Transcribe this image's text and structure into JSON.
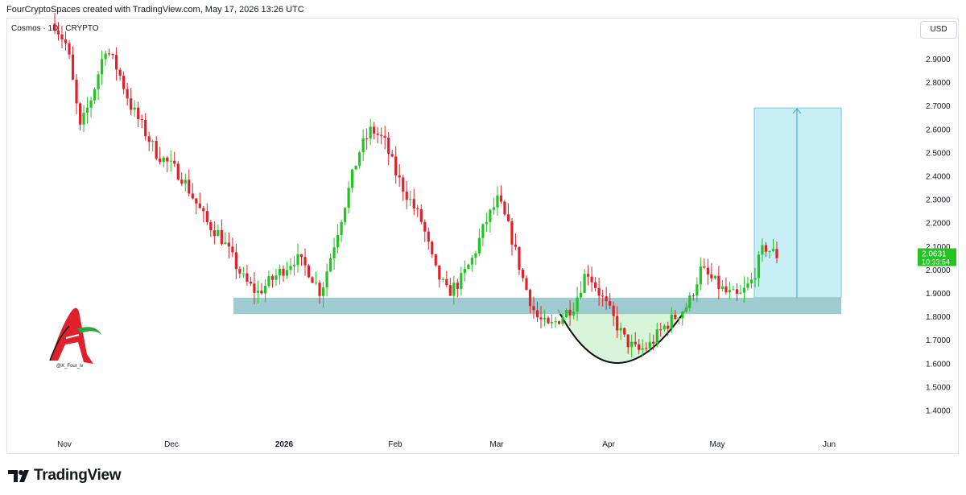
{
  "header": {
    "credit": "FourCryptoSpaces created with TradingView.com, May 17, 2026 13:26 UTC"
  },
  "symbol": {
    "label": "Cosmos · 1D · CRYPTO"
  },
  "currency_button": "USD",
  "watermark": {
    "handle": "@X_Four_iv"
  },
  "footer": {
    "brand": "TradingView"
  },
  "colors": {
    "up": "#22c322",
    "down": "#e0202a",
    "zone": "#8fc3c9",
    "target_box": "#c8eef6",
    "cup_fill": "#d9f5d9"
  },
  "chart_data": {
    "type": "candlestick",
    "symbol": "Cosmos",
    "interval": "1D",
    "currency": "USD",
    "ylim": [
      1.3,
      3.05
    ],
    "y_ticks": [
      "2.9000",
      "2.8000",
      "2.7000",
      "2.6000",
      "2.5000",
      "2.4000",
      "2.3000",
      "2.2000",
      "2.1000",
      "2.0000",
      "1.9000",
      "1.8000",
      "1.7000",
      "1.6000",
      "1.5000",
      "1.4000"
    ],
    "x_ticks": [
      "Nov",
      "Dec",
      "2026",
      "Feb",
      "Mar",
      "Apr",
      "May",
      "Jun"
    ],
    "last_price": "2.0631",
    "countdown": "10:33:54",
    "annotations": {
      "support_zone": {
        "low": 1.81,
        "high": 1.88
      },
      "target_box": {
        "low": 1.88,
        "high": 2.69
      },
      "cup_bottom": 1.59
    },
    "ohlc_trend": [
      3.05,
      2.95,
      2.6,
      2.75,
      2.95,
      2.85,
      2.7,
      2.6,
      2.5,
      2.45,
      2.4,
      2.3,
      2.2,
      2.15,
      2.05,
      1.95,
      1.9,
      1.95,
      2.0,
      2.05,
      2.0,
      1.9,
      2.1,
      2.3,
      2.5,
      2.6,
      2.55,
      2.4,
      2.3,
      2.2,
      2.0,
      1.9,
      1.95,
      2.05,
      2.2,
      2.3,
      2.15,
      1.95,
      1.8,
      1.75,
      1.8,
      1.85,
      2.0,
      1.9,
      1.8,
      1.7,
      1.65,
      1.68,
      1.75,
      1.8,
      1.85,
      2.0,
      1.95,
      1.9,
      1.88,
      1.95,
      2.1,
      2.06
    ]
  }
}
